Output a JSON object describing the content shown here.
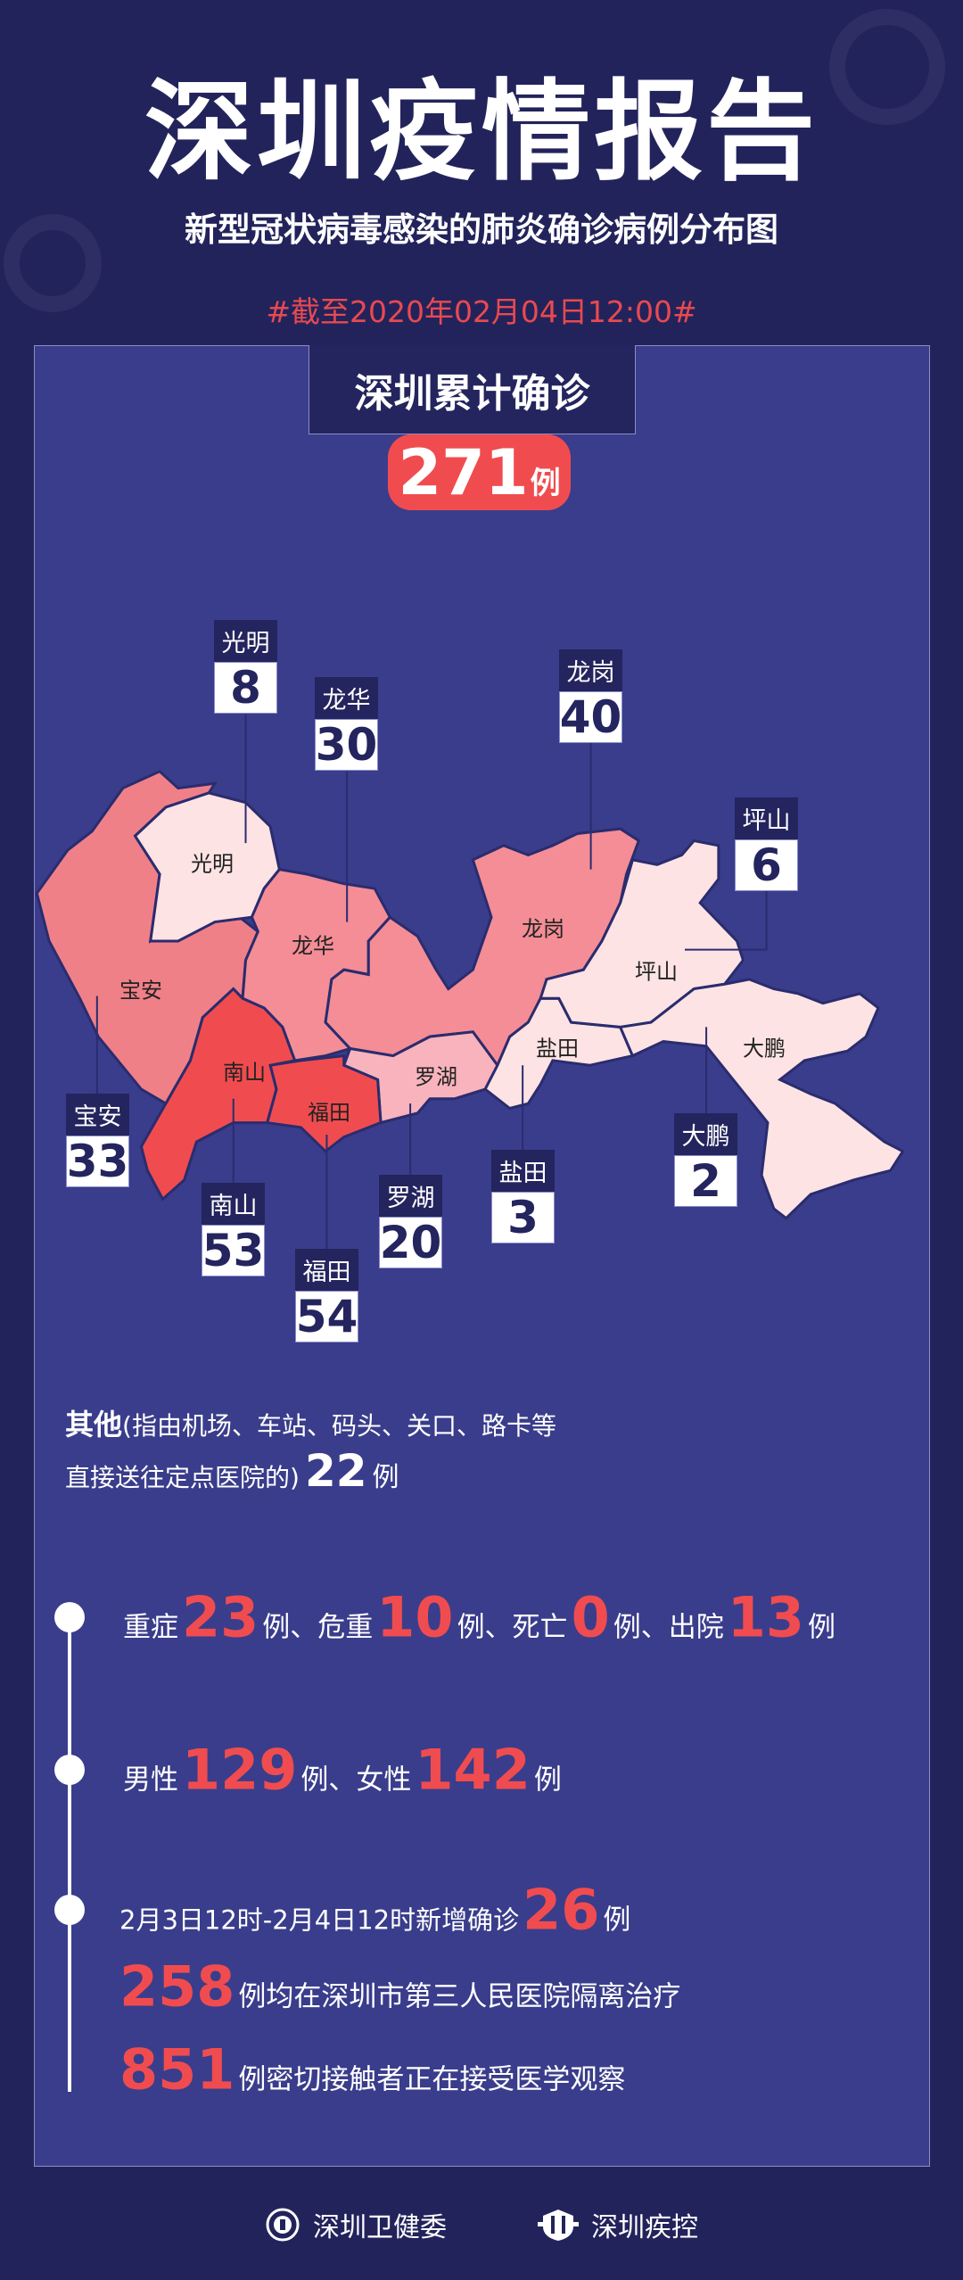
{
  "header": {
    "title": "深圳疫情报告",
    "subtitle": "新型冠状病毒感染的肺炎确诊病例分布图",
    "date": "#截至2020年02月04日12:00#"
  },
  "total": {
    "label": "深圳累计确诊",
    "value": "271",
    "unit": "例"
  },
  "colors": {
    "background": "#23235c",
    "panel": "#3a3d8b",
    "accent": "#f04c4f",
    "high": "#f04c4f",
    "mid": "#f48d96",
    "mid2": "#f08088",
    "low2": "#f8b3bd",
    "low": "#fde3e3"
  },
  "districts": [
    {
      "name": "光明",
      "count": "8"
    },
    {
      "name": "龙华",
      "count": "30"
    },
    {
      "name": "龙岗",
      "count": "40"
    },
    {
      "name": "坪山",
      "count": "6"
    },
    {
      "name": "宝安",
      "count": "33"
    },
    {
      "name": "南山",
      "count": "53"
    },
    {
      "name": "福田",
      "count": "54"
    },
    {
      "name": "罗湖",
      "count": "20"
    },
    {
      "name": "盐田",
      "count": "3"
    },
    {
      "name": "大鹏",
      "count": "2"
    }
  ],
  "other": {
    "label": "其他",
    "note1": "(指由机场、车站、码头、关口、路卡等",
    "note2": "直接送往定点医院的)",
    "value": "22",
    "unit": "例"
  },
  "stats": {
    "severe_label": "重症",
    "severe": "23",
    "critical_label": "例、危重",
    "critical": "10",
    "death_label": "例、死亡",
    "death": "0",
    "discharged_label": "例、出院",
    "discharged": "13",
    "unit": "例",
    "male_label": "男性",
    "male": "129",
    "female_label": "例、女性",
    "female": "142",
    "new_label": "2月3日12时-2月4日12时新增确诊",
    "new": "26",
    "hospital": "258",
    "hospital_label": "例均在深圳市第三人民医院隔离治疗",
    "contacts": "851",
    "contacts_label": "例密切接触者正在接受医学观察"
  },
  "footer": {
    "org1": "深圳卫健委",
    "org2": "深圳疾控"
  }
}
